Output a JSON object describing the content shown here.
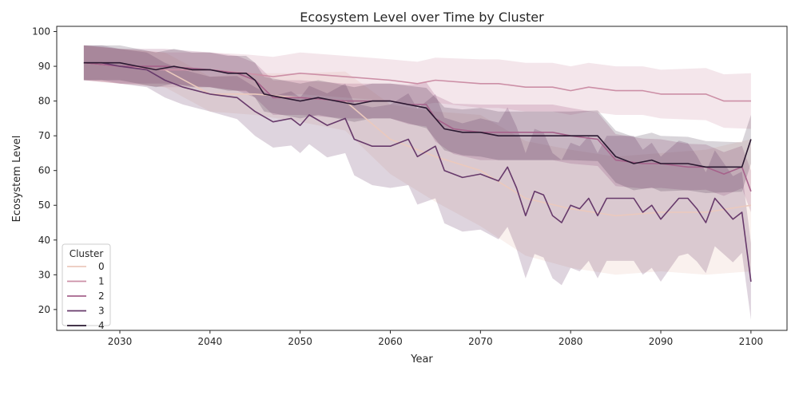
{
  "chart_data": {
    "type": "line",
    "title": "Ecosystem Level over Time by Cluster",
    "xlabel": "Year",
    "ylabel": "Ecosystem Level",
    "xlim": [
      2023,
      2104
    ],
    "ylim": [
      14,
      101.5
    ],
    "x_ticks": [
      2030,
      2040,
      2050,
      2060,
      2070,
      2080,
      2090,
      2100
    ],
    "y_ticks": [
      20,
      30,
      40,
      50,
      60,
      70,
      80,
      90,
      100
    ],
    "grid": false,
    "legend": {
      "title": "Cluster",
      "placement": "lower-left"
    },
    "series": [
      {
        "name": "0",
        "color": "#ebc9bd",
        "band_opacity": 0.25,
        "points": [
          [
            2026,
            91
          ],
          [
            2030,
            90
          ],
          [
            2035,
            89
          ],
          [
            2040,
            82
          ],
          [
            2045,
            82
          ],
          [
            2050,
            81
          ],
          [
            2055,
            80
          ],
          [
            2060,
            69
          ],
          [
            2065,
            64
          ],
          [
            2070,
            60
          ],
          [
            2075,
            52
          ],
          [
            2080,
            49
          ],
          [
            2085,
            47
          ],
          [
            2090,
            48
          ],
          [
            2095,
            48
          ],
          [
            2100,
            50
          ]
        ],
        "band_half": [
          [
            2026,
            5
          ],
          [
            2040,
            5
          ],
          [
            2050,
            7
          ],
          [
            2060,
            10
          ],
          [
            2070,
            16
          ],
          [
            2080,
            17
          ],
          [
            2090,
            17
          ],
          [
            2100,
            19
          ]
        ]
      },
      {
        "name": "1",
        "color": "#cc8fa6",
        "band_opacity": 0.22,
        "points": [
          [
            2026,
            91
          ],
          [
            2030,
            90
          ],
          [
            2035,
            89
          ],
          [
            2040,
            89
          ],
          [
            2044,
            88
          ],
          [
            2047,
            87
          ],
          [
            2050,
            88
          ],
          [
            2055,
            87
          ],
          [
            2060,
            86
          ],
          [
            2063,
            85
          ],
          [
            2065,
            86
          ],
          [
            2070,
            85
          ],
          [
            2072,
            85
          ],
          [
            2075,
            84
          ],
          [
            2078,
            84
          ],
          [
            2080,
            83
          ],
          [
            2082,
            84
          ],
          [
            2085,
            83
          ],
          [
            2088,
            83
          ],
          [
            2090,
            82
          ],
          [
            2093,
            82
          ],
          [
            2095,
            82
          ],
          [
            2097,
            80
          ],
          [
            2100,
            80
          ]
        ],
        "band_half": [
          [
            2026,
            5
          ],
          [
            2040,
            5
          ],
          [
            2050,
            6
          ],
          [
            2060,
            6
          ],
          [
            2070,
            7
          ],
          [
            2080,
            7
          ],
          [
            2090,
            7
          ],
          [
            2100,
            8
          ]
        ]
      },
      {
        "name": "2",
        "color": "#a6628b",
        "band_opacity": 0.25,
        "points": [
          [
            2026,
            91
          ],
          [
            2030,
            90
          ],
          [
            2035,
            90
          ],
          [
            2040,
            89
          ],
          [
            2043,
            88
          ],
          [
            2045,
            86
          ],
          [
            2047,
            81
          ],
          [
            2050,
            81
          ],
          [
            2055,
            80
          ],
          [
            2058,
            80
          ],
          [
            2060,
            80
          ],
          [
            2062,
            79
          ],
          [
            2064,
            79
          ],
          [
            2065,
            75
          ],
          [
            2067,
            72
          ],
          [
            2070,
            71
          ],
          [
            2072,
            71
          ],
          [
            2075,
            71
          ],
          [
            2078,
            71
          ],
          [
            2080,
            70
          ],
          [
            2083,
            69
          ],
          [
            2085,
            63
          ],
          [
            2088,
            62
          ],
          [
            2090,
            62
          ],
          [
            2093,
            61
          ],
          [
            2095,
            61
          ],
          [
            2097,
            59
          ],
          [
            2099,
            61
          ],
          [
            2100,
            54
          ]
        ],
        "band_half": [
          [
            2026,
            5
          ],
          [
            2040,
            5
          ],
          [
            2050,
            5
          ],
          [
            2060,
            5
          ],
          [
            2066,
            7
          ],
          [
            2070,
            8
          ],
          [
            2080,
            8
          ],
          [
            2090,
            7
          ],
          [
            2100,
            6
          ]
        ]
      },
      {
        "name": "3",
        "color": "#673a6b",
        "band_opacity": 0.22,
        "points": [
          [
            2026,
            91
          ],
          [
            2028,
            91
          ],
          [
            2030,
            90
          ],
          [
            2033,
            89
          ],
          [
            2035,
            86
          ],
          [
            2037,
            84
          ],
          [
            2040,
            82
          ],
          [
            2043,
            81
          ],
          [
            2045,
            77
          ],
          [
            2047,
            74
          ],
          [
            2049,
            75
          ],
          [
            2050,
            73
          ],
          [
            2051,
            76
          ],
          [
            2053,
            73
          ],
          [
            2055,
            75
          ],
          [
            2056,
            69
          ],
          [
            2058,
            67
          ],
          [
            2060,
            67
          ],
          [
            2062,
            69
          ],
          [
            2063,
            64
          ],
          [
            2065,
            67
          ],
          [
            2066,
            60
          ],
          [
            2068,
            58
          ],
          [
            2070,
            59
          ],
          [
            2072,
            57
          ],
          [
            2073,
            61
          ],
          [
            2074,
            55
          ],
          [
            2075,
            47
          ],
          [
            2076,
            54
          ],
          [
            2077,
            53
          ],
          [
            2078,
            47
          ],
          [
            2079,
            45
          ],
          [
            2080,
            50
          ],
          [
            2081,
            49
          ],
          [
            2082,
            52
          ],
          [
            2083,
            47
          ],
          [
            2084,
            52
          ],
          [
            2086,
            52
          ],
          [
            2087,
            52
          ],
          [
            2088,
            48
          ],
          [
            2089,
            50
          ],
          [
            2090,
            46
          ],
          [
            2091,
            49
          ],
          [
            2092,
            52
          ],
          [
            2093,
            52
          ],
          [
            2094,
            49
          ],
          [
            2095,
            45
          ],
          [
            2096,
            52
          ],
          [
            2097,
            49
          ],
          [
            2098,
            46
          ],
          [
            2099,
            48
          ],
          [
            2100,
            28
          ]
        ],
        "band_half": [
          [
            2026,
            5
          ],
          [
            2040,
            5
          ],
          [
            2045,
            7
          ],
          [
            2050,
            8
          ],
          [
            2055,
            10
          ],
          [
            2060,
            12
          ],
          [
            2065,
            15
          ],
          [
            2070,
            16
          ],
          [
            2075,
            18
          ],
          [
            2080,
            18
          ],
          [
            2090,
            18
          ],
          [
            2100,
            11
          ]
        ]
      },
      {
        "name": "4",
        "color": "#2a1830",
        "band_opacity": 0.18,
        "points": [
          [
            2026,
            91
          ],
          [
            2028,
            91
          ],
          [
            2030,
            91
          ],
          [
            2032,
            90
          ],
          [
            2034,
            89
          ],
          [
            2036,
            90
          ],
          [
            2038,
            89
          ],
          [
            2040,
            89
          ],
          [
            2042,
            88
          ],
          [
            2044,
            88
          ],
          [
            2045,
            86
          ],
          [
            2046,
            82
          ],
          [
            2048,
            81
          ],
          [
            2050,
            80
          ],
          [
            2052,
            81
          ],
          [
            2054,
            80
          ],
          [
            2056,
            79
          ],
          [
            2058,
            80
          ],
          [
            2060,
            80
          ],
          [
            2062,
            79
          ],
          [
            2064,
            78
          ],
          [
            2065,
            75
          ],
          [
            2066,
            72
          ],
          [
            2068,
            71
          ],
          [
            2070,
            71
          ],
          [
            2072,
            70
          ],
          [
            2075,
            70
          ],
          [
            2078,
            70
          ],
          [
            2080,
            70
          ],
          [
            2082,
            70
          ],
          [
            2083,
            70
          ],
          [
            2085,
            64
          ],
          [
            2087,
            62
          ],
          [
            2089,
            63
          ],
          [
            2090,
            62
          ],
          [
            2093,
            62
          ],
          [
            2095,
            61
          ],
          [
            2097,
            61
          ],
          [
            2099,
            61
          ],
          [
            2100,
            69
          ]
        ],
        "band_half": [
          [
            2026,
            5
          ],
          [
            2040,
            5
          ],
          [
            2050,
            5
          ],
          [
            2060,
            5
          ],
          [
            2065,
            6
          ],
          [
            2070,
            7
          ],
          [
            2080,
            7
          ],
          [
            2090,
            8
          ],
          [
            2100,
            7
          ]
        ]
      }
    ]
  }
}
